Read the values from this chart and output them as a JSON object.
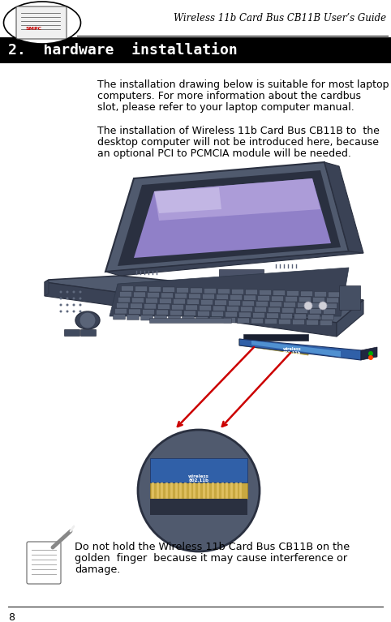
{
  "page_width": 4.82,
  "page_height": 7.67,
  "dpi": 100,
  "bg_color": "#ffffff",
  "header_title": "Wireless 11b Card Bus CB11B User’s Guide",
  "chapter_heading": "2.  hardware  installation",
  "chapter_bg": "#000000",
  "chapter_text_color": "#ffffff",
  "para1_line1": "The installation drawing below is suitable for most laptop",
  "para1_line2": "computers. For more information about the cardbus",
  "para1_line3": "slot, please refer to your laptop computer manual.",
  "para2_line1": "The installation of Wireless 11b Card Bus CB11B to  the",
  "para2_line2": "desktop computer will not be introduced here, because",
  "para2_line3": "an optional PCI to PCMCIA module will be needed.",
  "warning_line1": "Do not hold the Wireless 11b Card Bus CB11B on the",
  "warning_line2": "golden  finger  because it may cause interference or",
  "warning_line3": "damage.",
  "page_number": "8",
  "text_color": "#000000",
  "laptop_body_color": "#4a5470",
  "laptop_body_dark": "#363d52",
  "laptop_body_edge": "#2a3040",
  "screen_color": "#8878c0",
  "screen_light": "#b0a0e0",
  "screen_dark": "#6050a0",
  "card_blue": "#3060b0",
  "card_dark": "#1a3070",
  "card_label_blue": "#5090d0",
  "card_antenna": "#202840",
  "zoom_bg": "#4a5470",
  "golden_finger": "#d4b060",
  "red_arrow": "#cc0000"
}
